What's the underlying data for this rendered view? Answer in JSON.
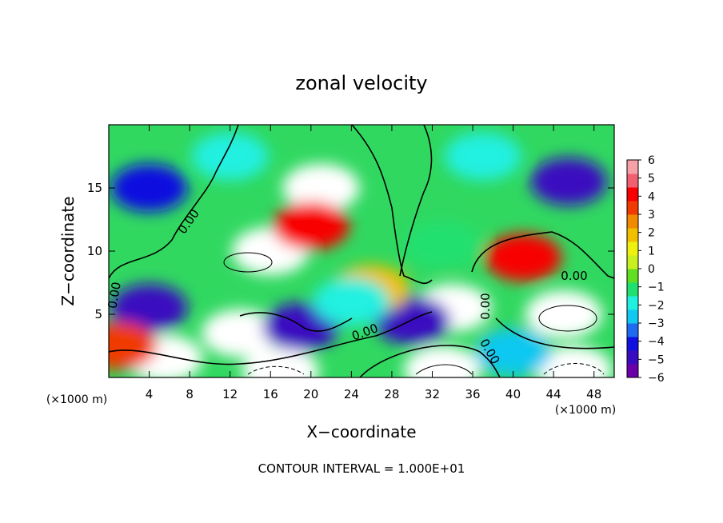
{
  "chart_data": {
    "type": "heatmap",
    "title": "zonal velocity",
    "xlabel": "X−coordinate",
    "ylabel": "Z−coordinate",
    "x_unit_left": "(×1000 m)",
    "x_unit_right": "(×1000 m)",
    "footer": "CONTOUR INTERVAL = 1.000E+01",
    "xlim": [
      0,
      50
    ],
    "ylim": [
      0,
      20
    ],
    "x_ticks": [
      4,
      8,
      12,
      16,
      20,
      24,
      28,
      32,
      36,
      40,
      44,
      48
    ],
    "y_ticks": [
      5,
      10,
      15
    ],
    "colorbar": {
      "min": -6,
      "max": 6,
      "ticks": [
        6,
        5,
        4,
        3,
        2,
        1,
        0,
        -1,
        -2,
        -3,
        -4,
        -5,
        -6
      ],
      "colors": [
        "#6a00a8",
        "#3a0cc0",
        "#1010e0",
        "#1e6af0",
        "#10c8f0",
        "#20f0e0",
        "#20e070",
        "#60e020",
        "#c8f020",
        "#f0f010",
        "#f0c000",
        "#f08a00",
        "#f03a00",
        "#f80000",
        "#f06070",
        "#f8a0a8"
      ]
    },
    "contour_labels": [
      "0.00",
      "0.00",
      "0.00",
      "0.00",
      "0.00",
      "0.00"
    ],
    "features": [
      {
        "x": 16,
        "y": 10,
        "value": 6
      },
      {
        "x": 21,
        "y": 15,
        "value": 6
      },
      {
        "x": 20,
        "y": 12,
        "value": 4
      },
      {
        "x": 34,
        "y": 5.5,
        "value": 6
      },
      {
        "x": 45,
        "y": 5,
        "value": 6
      },
      {
        "x": 13,
        "y": 3.5,
        "value": 6
      },
      {
        "x": 5.5,
        "y": 1.5,
        "value": 6
      },
      {
        "x": 33,
        "y": 0.6,
        "value": 6
      },
      {
        "x": 17,
        "y": 0.5,
        "value": 6
      },
      {
        "x": 46,
        "y": 0.6,
        "value": 6
      },
      {
        "x": 41,
        "y": 9.5,
        "value": 4
      },
      {
        "x": 4,
        "y": 15,
        "value": -4
      },
      {
        "x": 45.5,
        "y": 15.5,
        "value": -5
      },
      {
        "x": 4,
        "y": 5.5,
        "value": -5
      },
      {
        "x": 19,
        "y": 4,
        "value": -5
      },
      {
        "x": 30,
        "y": 4.5,
        "value": -5
      },
      {
        "x": 12,
        "y": 17.5,
        "value": -2
      },
      {
        "x": 37,
        "y": 17.5,
        "value": -2
      },
      {
        "x": 33,
        "y": 10.5,
        "value": -1
      },
      {
        "x": 1,
        "y": 2.5,
        "value": 3
      },
      {
        "x": 26,
        "y": 7,
        "value": 2
      },
      {
        "x": 40,
        "y": 2,
        "value": -3
      },
      {
        "x": 24,
        "y": 6,
        "value": -2
      }
    ]
  }
}
